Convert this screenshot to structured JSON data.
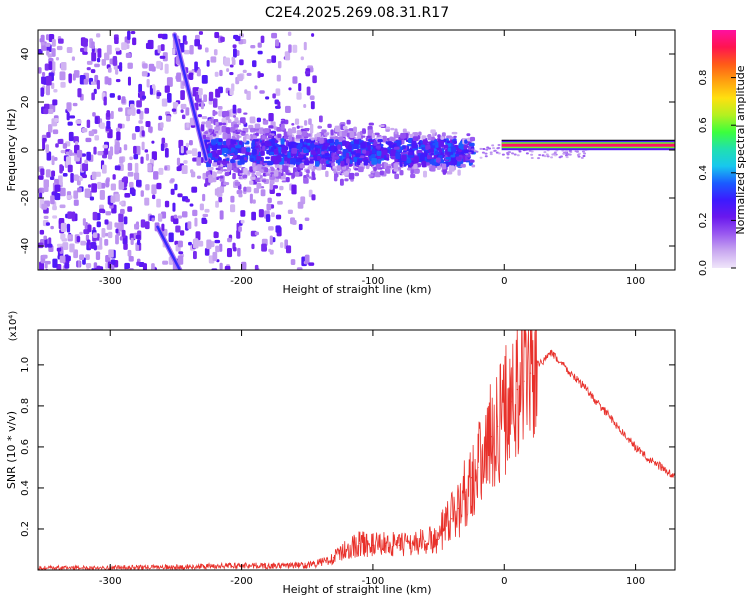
{
  "figure": {
    "title": "C2E4.2025.269.08.31.R17"
  },
  "chart_data": [
    {
      "type": "heatmap",
      "title": "C2E4.2025.269.08.31.R17",
      "xlabel": "Height of straight line (km)",
      "ylabel": "Frequency (Hz)",
      "xlim": [
        -355,
        130
      ],
      "ylim": [
        -50,
        50
      ],
      "xticks": [
        -300,
        -200,
        -100,
        0,
        100
      ],
      "xtick_labels": [
        "-300",
        "-200",
        "-100",
        "0",
        "100"
      ],
      "yticks": [
        -40,
        -20,
        0,
        20,
        40
      ],
      "ytick_labels": [
        "-40",
        "-20",
        "0",
        "20",
        "40"
      ],
      "grid": false,
      "colorbar": {
        "label": "Normalized spectral amplitude",
        "range": [
          0,
          1
        ],
        "ticks": [
          0.0,
          0.2,
          0.4,
          0.6,
          0.8
        ],
        "tick_labels": [
          "0.0",
          "0.2",
          "0.4",
          "0.6",
          "0.8"
        ],
        "colormap": [
          "#f0e6fa",
          "#c9a8f0",
          "#9a5af0",
          "#6a18ee",
          "#3c1aff",
          "#1a5cff",
          "#18c8ee",
          "#20e0b0",
          "#3cff3c",
          "#b4f020",
          "#ffe010",
          "#ffa010",
          "#ff5a18",
          "#ff1450",
          "#ff10a0"
        ]
      },
      "features": {
        "carrier_line": {
          "x_range": [
            -2,
            130
          ],
          "freq_hz": 2,
          "amplitude": 0.95
        },
        "streak_upper": {
          "x": [
            -251,
            -227
          ],
          "freq_hz": [
            48,
            -4
          ],
          "amplitude": 0.3
        },
        "streak_lower": {
          "x": [
            -264,
            -247
          ],
          "freq_hz": [
            -32,
            -50
          ],
          "amplitude": 0.3
        },
        "noise_region": {
          "x_range": [
            -355,
            -145
          ],
          "freq_range_hz": [
            -50,
            50
          ]
        },
        "spread_band": {
          "x_range": [
            -230,
            -25
          ],
          "freq_range_hz": [
            -20,
            18
          ]
        }
      }
    },
    {
      "type": "line",
      "xlabel": "Height of straight line (km)",
      "ylabel": "SNR (10 * v/v)",
      "y_multiplier": "(x10⁴)",
      "xlim": [
        -355,
        130
      ],
      "ylim": [
        0,
        1.17
      ],
      "xticks": [
        -300,
        -200,
        -100,
        0,
        100
      ],
      "xtick_labels": [
        "-300",
        "-200",
        "-100",
        "0",
        "100"
      ],
      "yticks": [
        0.2,
        0.4,
        0.6,
        0.8,
        1.0
      ],
      "ytick_labels": [
        "0.2",
        "0.4",
        "0.6",
        "0.8",
        "1.0"
      ],
      "grid": false,
      "series": [
        {
          "name": "SNR",
          "color": "#e8302a",
          "x": [
            -355,
            -300,
            -250,
            -200,
            -180,
            -160,
            -150,
            -140,
            -130,
            -120,
            -110,
            -100,
            -90,
            -80,
            -70,
            -60,
            -50,
            -45,
            -40,
            -35,
            -30,
            -25,
            -20,
            -15,
            -10,
            -5,
            0,
            5,
            10,
            15,
            20,
            25,
            30,
            35,
            40,
            45,
            50,
            55,
            60,
            70,
            80,
            90,
            100,
            110,
            120,
            130
          ],
          "values": [
            0.01,
            0.012,
            0.014,
            0.022,
            0.02,
            0.022,
            0.024,
            0.035,
            0.06,
            0.1,
            0.13,
            0.12,
            0.13,
            0.12,
            0.13,
            0.14,
            0.15,
            0.2,
            0.25,
            0.3,
            0.38,
            0.45,
            0.5,
            0.58,
            0.65,
            0.7,
            0.78,
            0.82,
            0.88,
            0.92,
            0.96,
            1.0,
            1.02,
            1.06,
            1.03,
            1.0,
            0.96,
            0.93,
            0.9,
            0.82,
            0.75,
            0.67,
            0.6,
            0.54,
            0.5,
            0.45
          ]
        }
      ]
    }
  ]
}
